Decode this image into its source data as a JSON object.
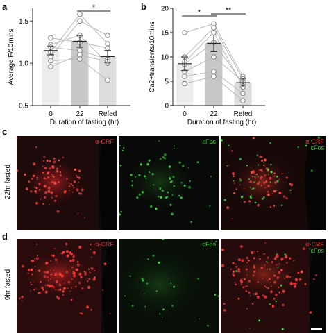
{
  "panel_labels": {
    "a": "a",
    "b": "b",
    "c": "c",
    "d": "d"
  },
  "colors": {
    "bar_0": "#ececec",
    "bar_22": "#c8c8c8",
    "bar_refed": "#dcdcdc",
    "crf": "#e23a3a",
    "cfos": "#35c43a",
    "micrograph_bg": "#0b0b0b",
    "line": "#b9b9b9",
    "point": "#7d7d7d"
  },
  "row_labels": {
    "c": "22hr fasted",
    "d": "9hr fasted"
  },
  "micrographs": {
    "crf_label": "α-CRF",
    "cfos_label": "cFos"
  },
  "chart_data": [
    {
      "type": "bar",
      "ylabel": "Average F/10mins",
      "xlabel": "Duration of fasting (hr)",
      "categories": [
        "0",
        "22",
        "Refed"
      ],
      "ylim": [
        0.5,
        1.65
      ],
      "yticks": [
        "0.5",
        "1.0",
        "1.5"
      ],
      "ytick_values": [
        0.5,
        1.0,
        1.5
      ],
      "means": [
        1.15,
        1.26,
        1.08
      ],
      "errors": [
        0.05,
        0.07,
        0.07
      ],
      "individual": [
        [
          1.22,
          1.33,
          1.0
        ],
        [
          1.13,
          1.58,
          1.23
        ],
        [
          1.08,
          1.5,
          1.33
        ],
        [
          1.3,
          1.25,
          1.18
        ],
        [
          1.19,
          1.15,
          1.05
        ],
        [
          0.96,
          1.1,
          1.02
        ],
        [
          1.03,
          1.05,
          0.8
        ]
      ],
      "significance": [
        {
          "from": 1,
          "to": 2,
          "label": "*"
        }
      ]
    },
    {
      "type": "bar",
      "ylabel": "Ca2+transients/10mins",
      "xlabel": "Duration of fasting (hr)",
      "categories": [
        "0",
        "22",
        "Refed"
      ],
      "ylim": [
        0,
        20
      ],
      "yticks": [
        "0",
        "5",
        "10",
        "15",
        "20"
      ],
      "ytick_values": [
        0,
        5,
        10,
        15,
        20
      ],
      "means": [
        8.6,
        12.8,
        4.7
      ],
      "errors": [
        1.4,
        1.7,
        0.9
      ],
      "individual": [
        [
          15.0,
          16.8,
          6.0
        ],
        [
          10.0,
          16.0,
          5.5
        ],
        [
          9.0,
          15.0,
          3.8
        ],
        [
          8.5,
          13.0,
          4.5
        ],
        [
          7.0,
          10.0,
          5.0
        ],
        [
          6.0,
          7.0,
          2.5
        ],
        [
          4.5,
          6.0,
          1.0
        ]
      ],
      "significance": [
        {
          "from": 0,
          "to": 1,
          "label": "*"
        },
        {
          "from": 1,
          "to": 2,
          "label": "**"
        }
      ]
    }
  ]
}
